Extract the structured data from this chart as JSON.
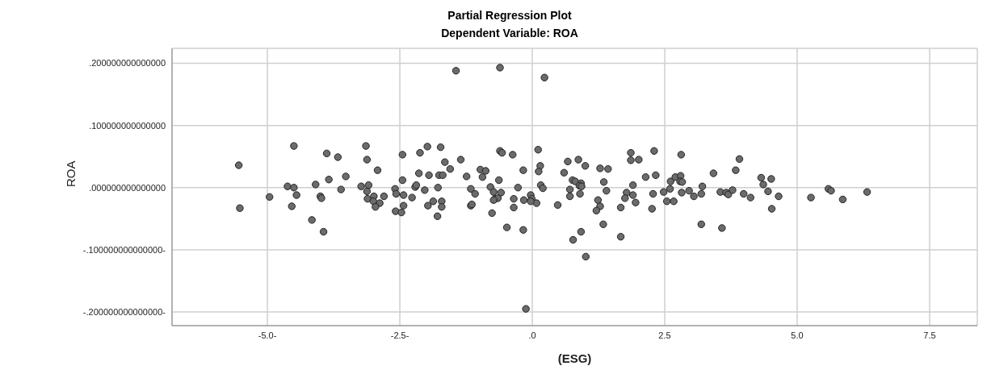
{
  "chart_data": {
    "type": "scatter",
    "title": "Partial Regression Plot",
    "subtitle": "Dependent Variable: ROA",
    "xlabel": "(ESG)",
    "ylabel": "ROA",
    "xlim": [
      -6.8,
      8.4
    ],
    "xticks": [
      {
        "value": -5,
        "label": "-5.0-"
      },
      {
        "value": -2.5,
        "label": "-2.5-"
      },
      {
        "value": 0,
        "label": ".0"
      },
      {
        "value": 2.5,
        "label": "2.5"
      },
      {
        "value": 5,
        "label": "5.0"
      },
      {
        "value": 7.5,
        "label": "7.5"
      }
    ],
    "ylim": [
      -0.222,
      0.224
    ],
    "yticks": [
      {
        "value": -0.2,
        "label": "-.200000000000000-"
      },
      {
        "value": -0.1,
        "label": "-.100000000000000-"
      },
      {
        "value": 0,
        "label": ".000000000000000"
      },
      {
        "value": 0.1,
        "label": ".100000000000000"
      },
      {
        "value": 0.2,
        "label": ".200000000000000"
      }
    ],
    "grid": true,
    "marker": "circle",
    "series": [
      {
        "color": "#6b6b6b",
        "x": [
          -5.54,
          -5.52,
          -4.96,
          -4.5,
          -4.62,
          -4.5,
          -4.45,
          -4.54,
          -4.16,
          -3.94,
          -3.88,
          -3.67,
          -3.84,
          -4.09,
          -4.0,
          -3.98,
          -3.61,
          -3.52,
          -3.23,
          -3.14,
          -3.12,
          -2.92,
          -3.09,
          -3.12,
          -2.99,
          -2.8,
          -3.11,
          -3.0,
          -2.88,
          -2.96,
          -2.45,
          -2.45,
          -2.59,
          -2.57,
          -2.43,
          -2.27,
          -2.43,
          -2.58,
          -2.47,
          -2.12,
          -1.98,
          -1.73,
          -1.65,
          -1.55,
          -1.35,
          -2.14,
          -1.95,
          -1.76,
          -1.69,
          -2.21,
          -2.19,
          -2.03,
          -1.78,
          -1.87,
          -1.71,
          -1.97,
          -1.71,
          -1.79,
          -1.24,
          -0.98,
          -0.88,
          -0.94,
          -1.16,
          -1.08,
          -1.16,
          -1.14,
          -0.63,
          -0.79,
          -0.73,
          -0.59,
          -0.7,
          -0.65,
          -0.73,
          -0.76,
          -0.61,
          -0.57,
          -0.37,
          -0.48,
          -0.17,
          -0.27,
          -0.35,
          -0.35,
          -0.17,
          -0.16,
          -0.03,
          -0.01,
          0.08,
          -0.03,
          0.11,
          0.15,
          0.12,
          0.16,
          0.2,
          0.48,
          0.6,
          0.67,
          0.87,
          1.0,
          0.76,
          0.81,
          0.92,
          0.89,
          0.93,
          0.71,
          0.71,
          0.9,
          0.77,
          0.92,
          1.01,
          1.28,
          1.43,
          1.35,
          1.4,
          1.24,
          1.28,
          1.21,
          1.34,
          1.67,
          1.67,
          1.86,
          1.86,
          2.01,
          2.3,
          2.14,
          2.33,
          1.9,
          1.78,
          1.9,
          1.75,
          1.95,
          2.28,
          2.26,
          2.48,
          2.6,
          2.61,
          2.54,
          2.67,
          2.7,
          2.8,
          2.79,
          2.83,
          2.81,
          2.82,
          2.96,
          3.05,
          3.19,
          3.21,
          3.19,
          3.42,
          3.58,
          3.55,
          3.66,
          3.7,
          3.78,
          3.84,
          3.91,
          3.99,
          4.12,
          4.32,
          4.51,
          4.36,
          4.45,
          4.65,
          4.52,
          5.26,
          5.59,
          5.64,
          5.86,
          6.32,
          -1.44,
          -0.61,
          0.23,
          -0.12
        ],
        "values": [
          0.036,
          -0.033,
          -0.015,
          0.067,
          0.002,
          0.0,
          -0.012,
          -0.03,
          -0.052,
          -0.071,
          0.055,
          0.049,
          0.013,
          0.005,
          -0.014,
          -0.017,
          -0.003,
          0.018,
          0.002,
          0.067,
          0.045,
          0.028,
          0.004,
          -0.006,
          -0.014,
          -0.014,
          -0.018,
          -0.022,
          -0.025,
          -0.031,
          0.053,
          0.012,
          -0.002,
          -0.01,
          -0.012,
          -0.016,
          -0.029,
          -0.038,
          -0.04,
          0.056,
          0.066,
          0.065,
          0.041,
          0.03,
          0.045,
          0.023,
          0.02,
          0.02,
          0.02,
          0.001,
          0.004,
          -0.004,
          0.0,
          -0.022,
          -0.022,
          -0.029,
          -0.031,
          -0.046,
          0.018,
          0.029,
          0.027,
          0.017,
          -0.002,
          -0.01,
          -0.029,
          -0.027,
          0.012,
          0.001,
          -0.007,
          -0.008,
          -0.018,
          -0.017,
          -0.02,
          -0.041,
          0.059,
          0.056,
          0.053,
          -0.064,
          -0.068,
          0.0,
          -0.018,
          -0.032,
          0.028,
          -0.02,
          -0.012,
          -0.018,
          -0.025,
          -0.022,
          0.061,
          0.035,
          0.026,
          0.004,
          -0.001,
          -0.028,
          0.024,
          0.042,
          0.045,
          0.035,
          0.012,
          0.01,
          0.007,
          0.003,
          0.002,
          -0.003,
          -0.014,
          -0.01,
          -0.084,
          -0.071,
          -0.111,
          0.031,
          0.03,
          0.009,
          -0.005,
          -0.02,
          -0.03,
          -0.037,
          -0.059,
          -0.032,
          -0.079,
          0.056,
          0.044,
          0.045,
          0.059,
          0.017,
          0.02,
          0.004,
          -0.008,
          -0.012,
          -0.017,
          -0.024,
          -0.01,
          -0.034,
          -0.007,
          -0.002,
          0.01,
          -0.022,
          -0.022,
          0.017,
          0.019,
          0.01,
          0.009,
          0.053,
          -0.008,
          -0.005,
          -0.014,
          -0.01,
          0.002,
          -0.059,
          0.023,
          -0.065,
          -0.007,
          -0.008,
          -0.011,
          -0.004,
          0.028,
          0.046,
          -0.01,
          -0.016,
          0.016,
          0.014,
          0.005,
          -0.006,
          -0.014,
          -0.034,
          -0.016,
          -0.002,
          -0.005,
          -0.019,
          -0.007,
          0.188,
          0.193,
          0.177,
          -0.195
        ]
      }
    ]
  }
}
